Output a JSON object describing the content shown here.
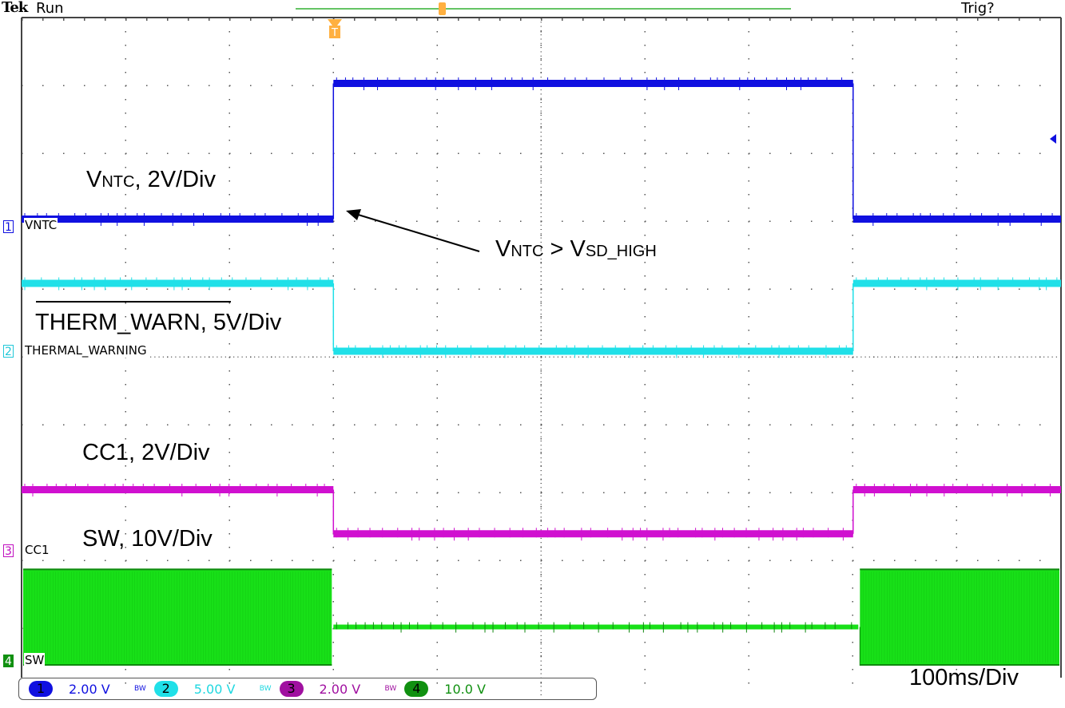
{
  "header": {
    "brand": "Tek",
    "status": "Run",
    "trigger_status": "Trig?"
  },
  "timebase": "100ms/Div",
  "colors": {
    "ch1": "#1010e0",
    "ch2": "#20e0e8",
    "ch3": "#d010d0",
    "ch4": "#18e018",
    "ch4_dark": "#108810",
    "trigger": "#ffb040",
    "grid": "#555555"
  },
  "channels": [
    {
      "num": "1",
      "label": "VNTC",
      "scale": "2.00 V",
      "bw": "BW",
      "color": "#1010e0",
      "badge_color": "#1010e0"
    },
    {
      "num": "2",
      "label": "THERMAL_WARNING",
      "scale": "5.00 V",
      "bw": "BW",
      "color": "#20e0e8",
      "badge_color": "#20e0e8"
    },
    {
      "num": "3",
      "label": "CC1",
      "scale": "2.00 V",
      "bw": "BW",
      "color": "#c010c0",
      "badge_color": "#a010a0"
    },
    {
      "num": "4",
      "label": "SW",
      "scale": "10.0 V",
      "bw": "",
      "color": "#109010",
      "badge_color": "#109010"
    }
  ],
  "annotations": {
    "vntc": {
      "main": "V",
      "sub": "NTC",
      "rest": ", 2V/Div"
    },
    "condition": {
      "v1": "V",
      "s1": "NTC",
      "mid": " > V",
      "s2": "SD_HIGH"
    },
    "therm": "THERM_WARN, 5V/Div",
    "cc1": "CC1, 2V/Div",
    "sw": "SW, 10V/Div"
  },
  "chart_data": {
    "type": "line",
    "xlabel": "",
    "ylabel": "",
    "x_unit": "ms",
    "xlim": [
      0,
      1000
    ],
    "time_per_div_ms": 100,
    "grid": true,
    "series": [
      {
        "name": "VNTC",
        "volts_per_div": 2,
        "segments": [
          {
            "t": [
              0,
              300
            ],
            "v": 0.2
          },
          {
            "t": [
              300,
              800
            ],
            "v": 4.2
          },
          {
            "t": [
              800,
              1000
            ],
            "v": 0.2
          }
        ]
      },
      {
        "name": "THERMAL_WARNING",
        "volts_per_div": 5,
        "segments": [
          {
            "t": [
              0,
              300
            ],
            "v": 5
          },
          {
            "t": [
              300,
              800
            ],
            "v": 0
          },
          {
            "t": [
              800,
              1000
            ],
            "v": 5
          }
        ]
      },
      {
        "name": "CC1",
        "volts_per_div": 2,
        "segments": [
          {
            "t": [
              0,
              300
            ],
            "v": 1.8
          },
          {
            "t": [
              300,
              800
            ],
            "v": 0.5
          },
          {
            "t": [
              800,
              1000
            ],
            "v": 1.8
          }
        ]
      },
      {
        "name": "SW",
        "volts_per_div": 10,
        "switching": true,
        "segments": [
          {
            "t": [
              0,
              300
            ],
            "v_min": 0,
            "v_max": 13.6
          },
          {
            "t": [
              300,
              805
            ],
            "v": 5
          },
          {
            "t": [
              805,
              1000
            ],
            "v_min": 0,
            "v_max": 13.6
          }
        ]
      }
    ]
  }
}
